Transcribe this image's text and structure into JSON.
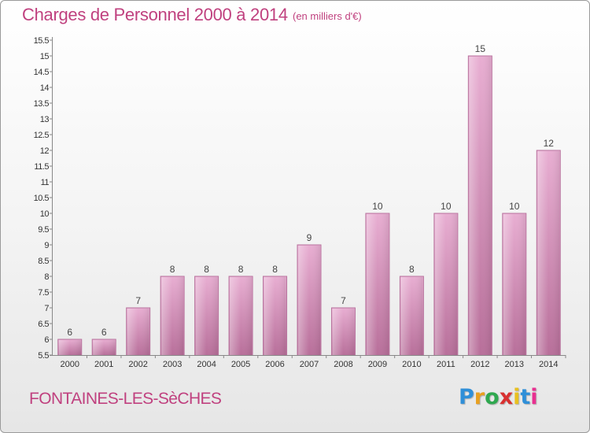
{
  "header": {
    "title": "Charges de Personnel 2000 à 2014",
    "subtitle": "(en milliers d'€)"
  },
  "footer": {
    "place": "FONTAINES-LES-SèCHES",
    "logo_letters": [
      "P",
      "r",
      "o",
      "x",
      "i",
      "t",
      "i"
    ],
    "logo_colors": [
      "#2f8fd8",
      "#e8a020",
      "#2fa84f",
      "#d83030",
      "#e8c020",
      "#2f8fd8",
      "#e83090"
    ]
  },
  "chart_data": {
    "type": "bar",
    "title": "Charges de Personnel 2000 à 2014",
    "subtitle": "(en milliers d'€)",
    "categories": [
      "2000",
      "2001",
      "2002",
      "2003",
      "2004",
      "2005",
      "2006",
      "2007",
      "2008",
      "2009",
      "2010",
      "2011",
      "2012",
      "2013",
      "2014"
    ],
    "values": [
      6,
      6,
      7,
      8,
      8,
      8,
      8,
      9,
      7,
      10,
      8,
      10,
      15,
      10,
      12
    ],
    "ylim": [
      5.5,
      15.5
    ],
    "yticks": [
      5.5,
      6,
      6.5,
      7,
      7.5,
      8,
      8.5,
      9,
      9.5,
      10,
      10.5,
      11,
      11.5,
      12,
      12.5,
      13,
      13.5,
      14,
      14.5,
      15,
      15.5
    ],
    "ytick_labels": [
      "5.5",
      "6",
      "6.5",
      "7",
      "7.5",
      "8",
      "8.5",
      "9",
      "9.5",
      "10",
      "10.5",
      "11",
      "11.5",
      "12",
      "12.5",
      "13",
      "13.5",
      "14",
      "14.5",
      "15",
      "15.5"
    ],
    "grid": false,
    "bar_color": "#d68bb8",
    "bar_color_light": "#e8aed2"
  }
}
